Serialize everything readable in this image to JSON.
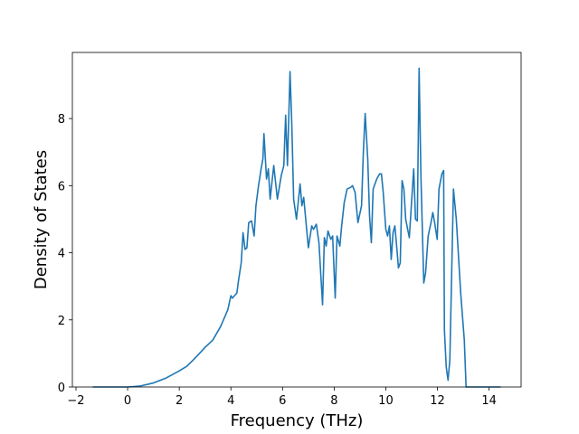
{
  "chart_data": {
    "type": "line",
    "xlabel": "Frequency (THz)",
    "ylabel": "Density of States",
    "color": "#1f77b4",
    "x": [
      -1.35,
      0,
      0.5,
      1.0,
      1.5,
      2.0,
      2.3,
      2.6,
      3.0,
      3.3,
      3.6,
      3.88,
      4.0,
      4.06,
      4.23,
      4.3,
      4.4,
      4.47,
      4.55,
      4.62,
      4.69,
      4.8,
      4.9,
      4.97,
      5.07,
      5.17,
      5.24,
      5.28,
      5.38,
      5.45,
      5.52,
      5.66,
      5.8,
      5.95,
      6.05,
      6.12,
      6.19,
      6.29,
      6.36,
      6.43,
      6.54,
      6.68,
      6.75,
      6.82,
      7.0,
      7.13,
      7.2,
      7.31,
      7.41,
      7.55,
      7.62,
      7.69,
      7.76,
      7.87,
      7.94,
      8.04,
      8.11,
      8.22,
      8.29,
      8.39,
      8.5,
      8.64,
      8.71,
      8.81,
      8.92,
      9.06,
      9.13,
      9.2,
      9.3,
      9.37,
      9.44,
      9.51,
      9.65,
      9.76,
      9.83,
      9.9,
      10.0,
      10.07,
      10.14,
      10.21,
      10.28,
      10.35,
      10.42,
      10.49,
      10.56,
      10.63,
      10.7,
      10.77,
      10.91,
      11.08,
      11.15,
      11.22,
      11.29,
      11.36,
      11.47,
      11.54,
      11.64,
      11.75,
      11.82,
      11.89,
      11.99,
      12.06,
      12.17,
      12.24,
      12.27,
      12.34,
      12.41,
      12.48,
      12.62,
      12.73,
      12.9,
      13.04,
      13.11,
      14.45
    ],
    "values": [
      0,
      0,
      0.03,
      0.12,
      0.27,
      0.48,
      0.62,
      0.85,
      1.18,
      1.4,
      1.8,
      2.3,
      2.72,
      2.65,
      2.8,
      3.2,
      3.7,
      4.6,
      4.1,
      4.15,
      4.9,
      4.95,
      4.5,
      5.4,
      6.0,
      6.5,
      6.8,
      7.55,
      6.2,
      6.5,
      5.6,
      6.6,
      5.6,
      6.3,
      6.6,
      8.1,
      6.6,
      9.4,
      7.8,
      5.6,
      5.0,
      6.05,
      5.4,
      5.65,
      4.15,
      4.8,
      4.7,
      4.85,
      4.3,
      2.45,
      4.45,
      4.2,
      4.65,
      4.4,
      4.5,
      2.65,
      4.5,
      4.2,
      4.8,
      5.5,
      5.9,
      5.95,
      6.0,
      5.8,
      4.9,
      5.4,
      7.0,
      8.15,
      6.8,
      5.1,
      4.3,
      5.9,
      6.2,
      6.35,
      6.35,
      5.8,
      4.7,
      4.5,
      4.8,
      3.8,
      4.6,
      4.8,
      4.2,
      3.55,
      3.7,
      6.15,
      5.9,
      5.0,
      4.45,
      6.5,
      5.0,
      4.95,
      9.5,
      6.3,
      3.1,
      3.4,
      4.5,
      4.9,
      5.2,
      4.9,
      4.4,
      5.9,
      6.35,
      6.45,
      1.7,
      0.6,
      0.2,
      0.8,
      5.9,
      5.0,
      2.8,
      1.4,
      0,
      0
    ],
    "xlim": [
      -2.14,
      15.24
    ],
    "ylim": [
      0,
      9.97
    ],
    "xticks": [
      {
        "value": -2,
        "label": "−2"
      },
      0,
      2,
      4,
      6,
      8,
      10,
      12,
      14
    ],
    "yticks": [
      0,
      2,
      4,
      6,
      8
    ]
  }
}
